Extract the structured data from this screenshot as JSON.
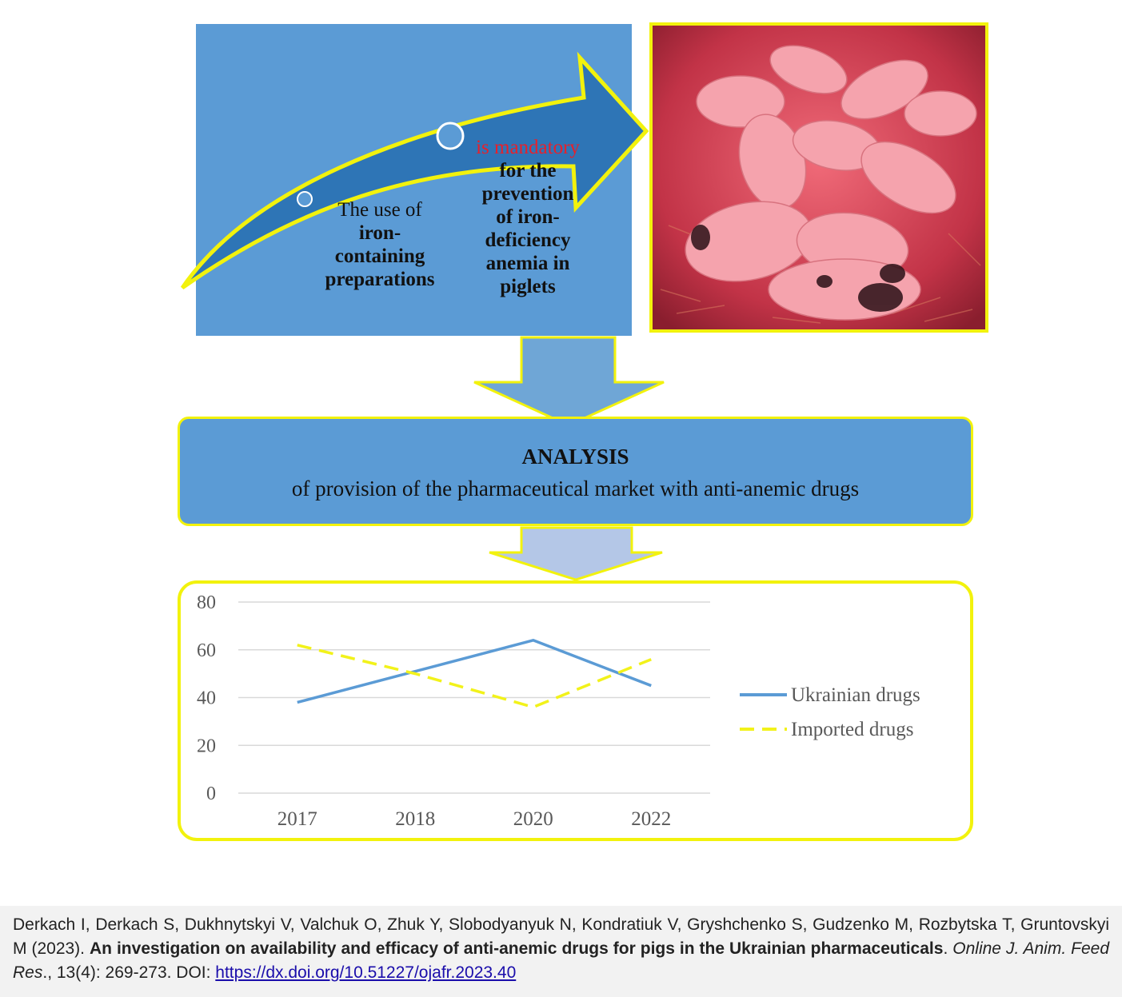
{
  "top_panel": {
    "left_text": {
      "line1": "The use of",
      "bold_lines": [
        "iron-",
        "containing",
        "preparations"
      ]
    },
    "right_text": {
      "highlight": "is mandatory",
      "bold_lines": [
        "for the",
        "prevention",
        "of iron-",
        "deficiency",
        "anemia in",
        "piglets"
      ]
    },
    "photo_description": ""
  },
  "analysis": {
    "title": "ANALYSIS",
    "subtitle": "of provision of the pharmaceutical market with anti-anemic drugs"
  },
  "chart_data": {
    "type": "line",
    "categories": [
      "2017",
      "2018",
      "2020",
      "2022"
    ],
    "ylim": [
      0,
      80
    ],
    "yticks": [
      "0",
      "20",
      "40",
      "60",
      "80"
    ],
    "grid": true,
    "legend_position": "right",
    "series": [
      {
        "name": "Ukrainian drugs",
        "values": [
          38,
          51,
          64,
          45
        ],
        "color": "#5b9bd5",
        "style": "solid"
      },
      {
        "name": "Imported drugs",
        "values": [
          62,
          50,
          36,
          56
        ],
        "color": "#f2f21a",
        "style": "dashed"
      }
    ]
  },
  "colors": {
    "panel_blue": "#5b9bd5",
    "arrow_blue": "#2e75b6",
    "outline_yellow": "#f2f20d",
    "down_arrow_1": "#6fa6d6",
    "down_arrow_2": "#b4c7e7"
  },
  "footer": {
    "authors": "Derkach I, Derkach S, Dukhnytskyi V, Valchuk O, Zhuk Y, Slobodyanyuk N, Kondratiuk V, Gryshchenko S, Gudzenko M, Rozbytska T, Gruntovskyi M (2023). ",
    "title": "An investigation on availability and efficacy of anti-anemic drugs for pigs in the Ukrainian pharmaceuticals",
    "title_end": ".",
    "journal": "Online J. Anim. Feed Res",
    "volume": "., 13(4): 269-273. DOI: ",
    "doi": "https://dx.doi.org/10.51227/ojafr.2023.40"
  }
}
